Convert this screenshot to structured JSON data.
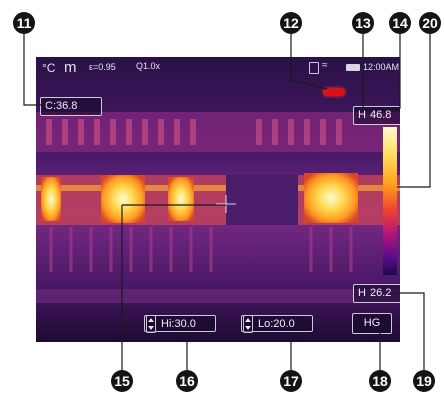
{
  "status_bar": {
    "unit": "°C",
    "mode": "m",
    "emissivity": "ε=0.95",
    "zoom": "Q1.0x",
    "time": "12:00AM"
  },
  "readouts": {
    "center_label": "C:",
    "center_value": "36.8",
    "high_label": "H",
    "high_value": "46.8",
    "low_label": "H",
    "low_value": "26.2"
  },
  "alarms": {
    "hi_label": "Hi:",
    "hi_value": "30.0",
    "lo_label": "Lo:",
    "lo_value": "20.0"
  },
  "palette_button": "HG",
  "callouts": [
    "11",
    "12",
    "13",
    "14",
    "20",
    "15",
    "16",
    "17",
    "18",
    "19"
  ],
  "colors": {
    "laser": "#d8121a",
    "palette_hot": "#fffbd0",
    "palette_cold": "#1b0a4a"
  }
}
